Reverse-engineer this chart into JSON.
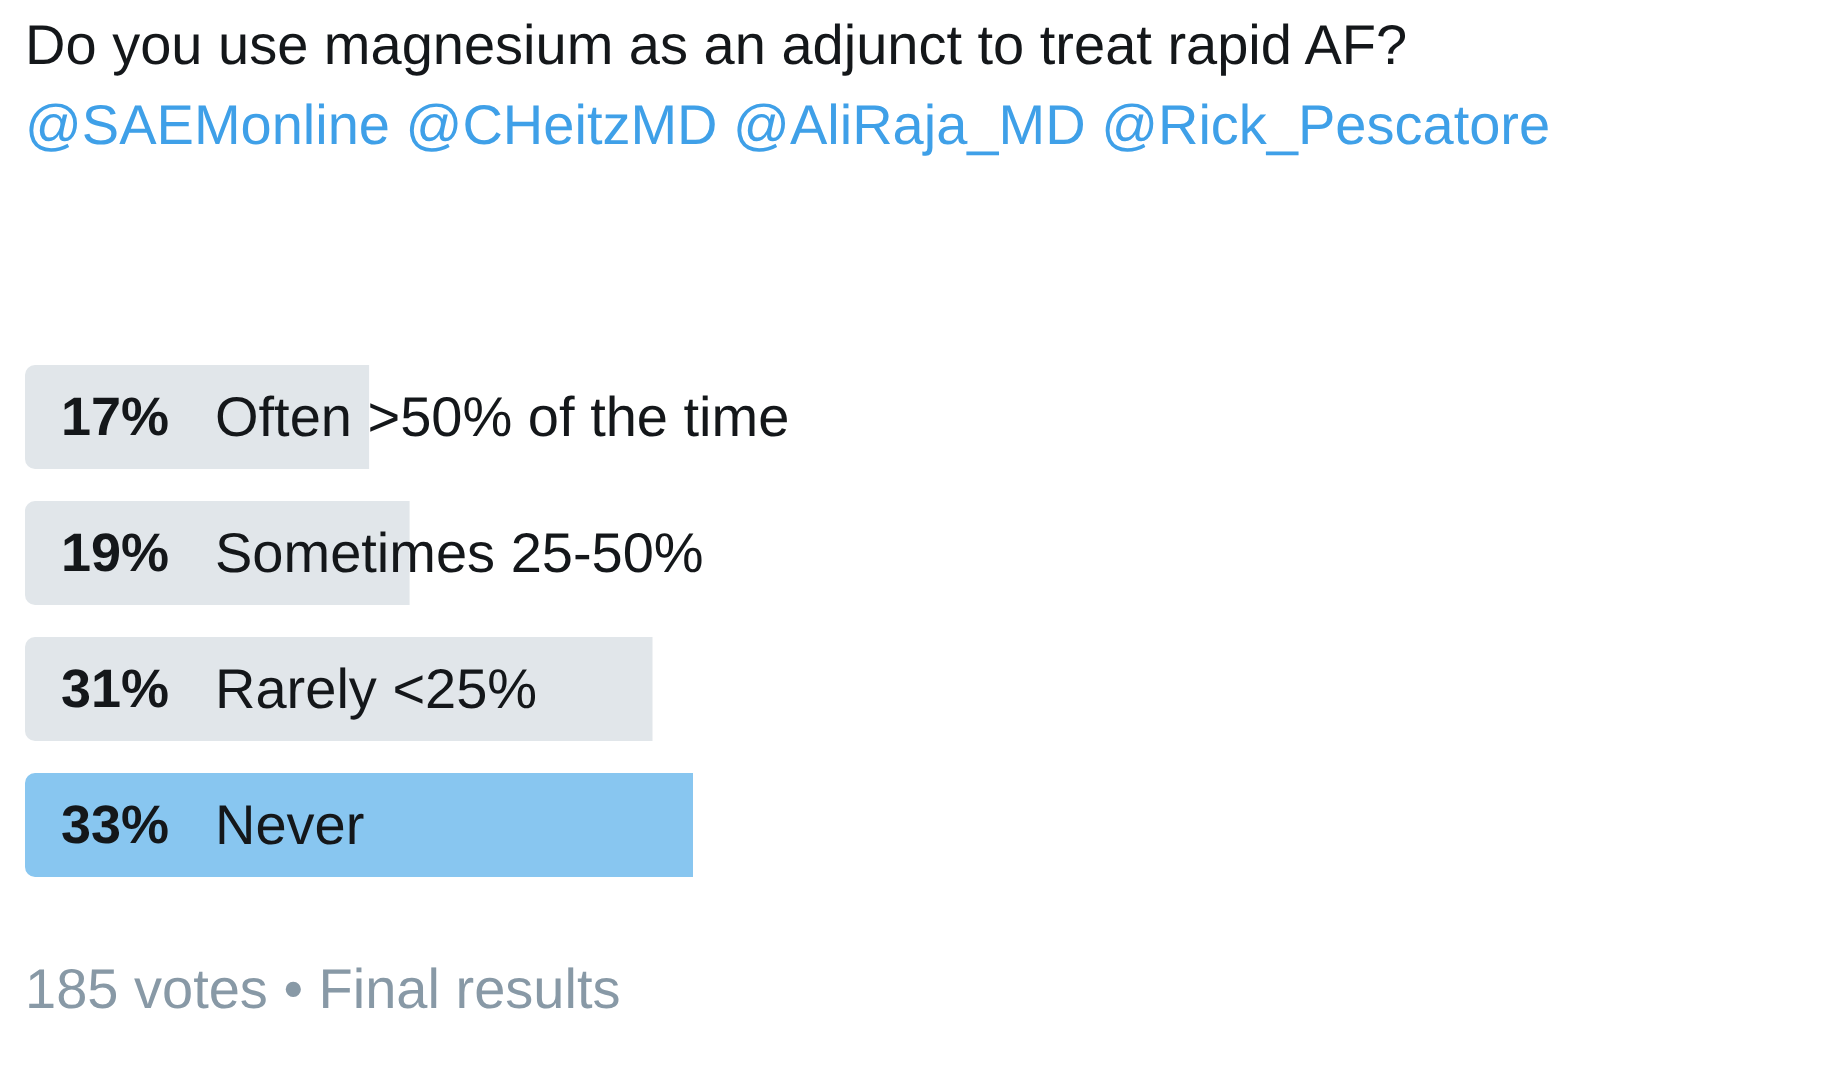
{
  "chart_data": {
    "type": "bar",
    "orientation": "horizontal",
    "title": "Do you use magnesium as an adjunct to treat rapid AF?",
    "subtitle": "@SAEMonline @CHeitzMD @AliRaja_MD @Rick_Pescatore",
    "categories": [
      "Often >50% of the time",
      "Sometimes 25-50%",
      "Rarely <25%",
      "Never"
    ],
    "values": [
      17,
      19,
      31,
      33
    ],
    "colors": [
      "#e1e6ea",
      "#e1e6ea",
      "#e1e6ea",
      "#88c6f0"
    ],
    "value_labels": [
      "17%",
      "19%",
      "31%",
      "33%"
    ],
    "annotations": [
      "185 votes • Final results"
    ]
  }
}
